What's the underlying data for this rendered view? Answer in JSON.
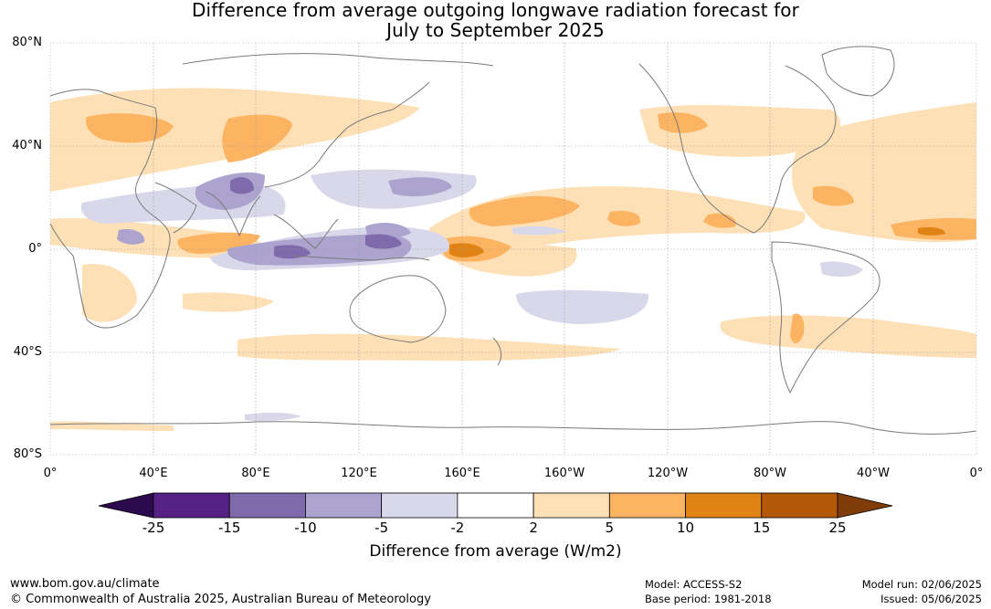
{
  "title": {
    "line1": "Difference from average outgoing longwave radiation forecast for",
    "line2": "July to September 2025"
  },
  "map": {
    "lat_labels": [
      "80°N",
      "40°N",
      "0°",
      "40°S",
      "80°S"
    ],
    "lon_labels": [
      "0°",
      "40°E",
      "80°E",
      "120°E",
      "160°E",
      "160°W",
      "120°W",
      "80°W",
      "40°W",
      "0°"
    ],
    "land_color": "#ffffff",
    "coast_color": "#7a7a7a",
    "grid_color": "#9a9a9a"
  },
  "chart_data": {
    "type": "heatmap",
    "lat_range": [
      -80,
      80
    ],
    "lon_range": [
      0,
      360
    ],
    "anomaly_regions": [
      {
        "name": "west-tropical-pacific-warm-pool",
        "lon": [
          100,
          150
        ],
        "lat": [
          -10,
          10
        ],
        "class": "-15"
      },
      {
        "name": "central-equatorial-pacific",
        "lon": [
          155,
          170
        ],
        "lat": [
          -5,
          5
        ],
        "class": "15"
      },
      {
        "name": "north-pacific-subtropics",
        "lon": [
          165,
          230
        ],
        "lat": [
          10,
          25
        ],
        "class": "5"
      },
      {
        "name": "eurasia-midlatitudes",
        "lon": [
          0,
          130
        ],
        "lat": [
          35,
          60
        ],
        "class": "2"
      },
      {
        "name": "north-atlantic",
        "lon": [
          290,
          360
        ],
        "lat": [
          10,
          50
        ],
        "class": "2"
      },
      {
        "name": "southern-ocean-band",
        "lon": [
          40,
          340
        ],
        "lat": [
          -45,
          -35
        ],
        "class": "2"
      }
    ]
  },
  "colorbar": {
    "ticks": [
      "-25",
      "-15",
      "-10",
      "-5",
      "-2",
      "2",
      "5",
      "10",
      "15",
      "25"
    ],
    "colors": [
      "#2d0a4e",
      "#562184",
      "#7f6aab",
      "#aca4cf",
      "#d9d8ea",
      "#ffffff",
      "#fee0b6",
      "#fdb462",
      "#e08214",
      "#b35806",
      "#7f3b08"
    ],
    "label": "Difference from average (W/m2)"
  },
  "footer": {
    "url": "www.bom.gov.au/climate",
    "copyright": "© Commonwealth of Australia 2025, Australian Bureau of Meteorology",
    "model": "Model: ACCESS-S2",
    "base_period": "Base period: 1981-2018",
    "model_run": "Model run: 02/06/2025",
    "issued": "Issued: 05/06/2025"
  }
}
